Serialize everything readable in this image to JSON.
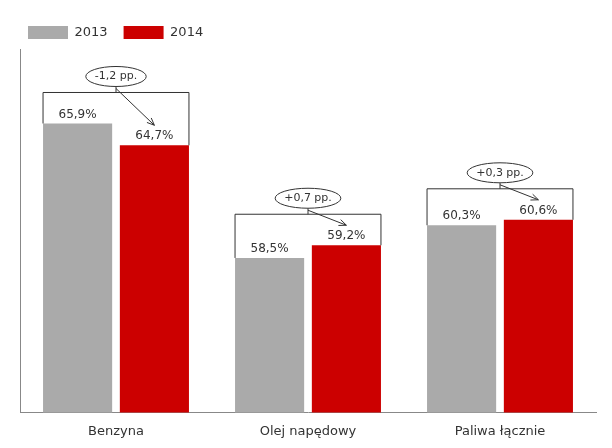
{
  "chart_data": {
    "type": "bar",
    "categories": [
      "Benzyna",
      "Olej napędowy",
      "Paliwa łącznie"
    ],
    "series": [
      {
        "name": "2013",
        "color": "#aaaaaa",
        "values": [
          65.9,
          58.5,
          60.3
        ],
        "value_labels": [
          "65,9%",
          "58,5%",
          "60,3%"
        ]
      },
      {
        "name": "2014",
        "color": "#cc0000",
        "values": [
          64.7,
          59.2,
          60.6
        ],
        "value_labels": [
          "64,7%",
          "59,2%",
          "60,6%"
        ]
      }
    ],
    "ylim": [
      50,
      70
    ],
    "tick_labels": "x",
    "grid": false,
    "legend": "upper left",
    "data_labels": true,
    "annotations": [
      "-1,2 pp.",
      "+0,7 pp.",
      "+0,3 pp."
    ]
  }
}
